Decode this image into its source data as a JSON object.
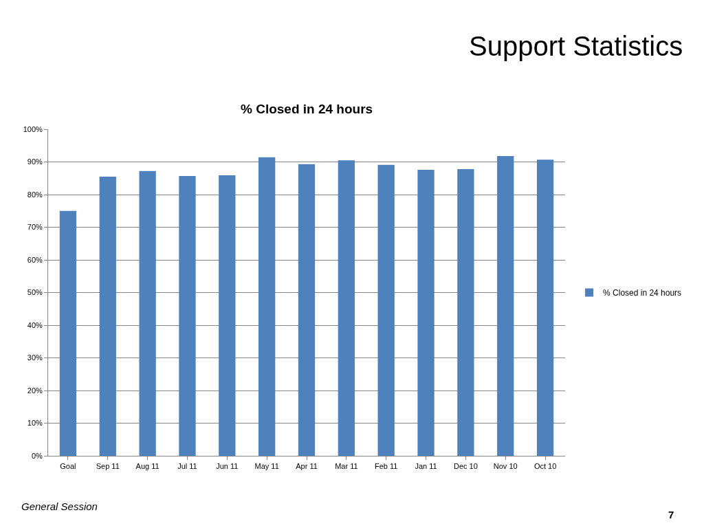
{
  "chart_data": {
    "type": "bar",
    "title": "Support Statistics",
    "subtitle": "% Closed in 24 hours",
    "categories": [
      "Goal",
      "Sep 11",
      "Aug 11",
      "Jul 11",
      "Jun 11",
      "May 11",
      "Apr 11",
      "Mar 11",
      "Feb 11",
      "Jan 11",
      "Dec 10",
      "Nov 10",
      "Oct 10"
    ],
    "series": [
      {
        "name": "% Closed in 24 hours",
        "color": "#4f81bd",
        "values": [
          75,
          85.5,
          87.2,
          85.7,
          85.9,
          91.4,
          89.3,
          90.5,
          89.1,
          87.6,
          87.8,
          91.8,
          90.7
        ]
      }
    ],
    "ylim": [
      0,
      100
    ],
    "yticks": [
      {
        "value": 0,
        "label": "0%"
      },
      {
        "value": 10,
        "label": "10%"
      },
      {
        "value": 20,
        "label": "20%"
      },
      {
        "value": 30,
        "label": "30%"
      },
      {
        "value": 40,
        "label": "40%"
      },
      {
        "value": 50,
        "label": "50%"
      },
      {
        "value": 60,
        "label": "60%"
      },
      {
        "value": 70,
        "label": "70%"
      },
      {
        "value": 80,
        "label": "80%"
      },
      {
        "value": 90,
        "label": "90%"
      },
      {
        "value": 100,
        "label": "100%"
      }
    ],
    "grid": "y",
    "legend": "right",
    "annotations": [
      "General Session",
      "7"
    ]
  }
}
